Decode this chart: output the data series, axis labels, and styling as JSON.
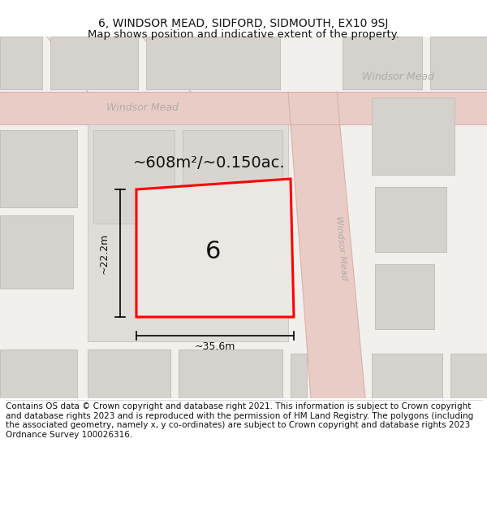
{
  "title_line1": "6, WINDSOR MEAD, SIDFORD, SIDMOUTH, EX10 9SJ",
  "title_line2": "Map shows position and indicative extent of the property.",
  "footer_text": "Contains OS data © Crown copyright and database right 2021. This information is subject to Crown copyright and database rights 2023 and is reproduced with the permission of HM Land Registry. The polygons (including the associated geometry, namely x, y co-ordinates) are subject to Crown copyright and database rights 2023 Ordnance Survey 100026316.",
  "area_label": "~608m²/~0.150ac.",
  "width_label": "~35.6m",
  "height_label": "~22.2m",
  "plot_number": "6",
  "bg_color": "#f2f0ec",
  "road_fill": "#eaccc6",
  "road_line": "#d9b0aa",
  "bld_fill": "#d5d2cd",
  "bld_edge": "#c0bcb8",
  "inner_fill": "#e0ddd9",
  "plot_fill": "#ebe8e4",
  "plot_edge": "#ff0000",
  "label_color": "#b0acaa",
  "title_fontsize": 10,
  "footer_fontsize": 7.5
}
